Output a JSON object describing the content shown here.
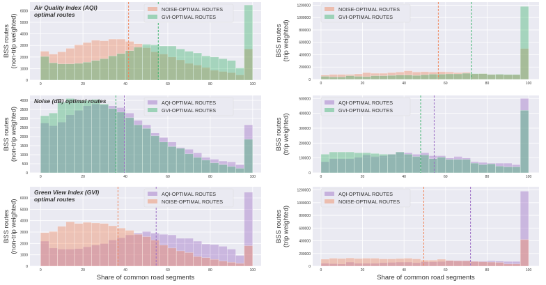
{
  "colors": {
    "noise": "#f0875c",
    "gvi": "#3fb56f",
    "aqi": "#9b6cc4",
    "background": "#eaeaf2"
  },
  "chart_data": [
    {
      "type": "bar",
      "id": "aqi-nontrip",
      "title": "Air Quality Index (AQI)\noptimal routes",
      "ylabel": "BSS routes\n(non-trip weighted)",
      "xlabel": "",
      "bin_edges_step": 4,
      "xlim": [
        -5,
        104
      ],
      "ylim": [
        0,
        6750
      ],
      "xticks": [
        0,
        20,
        40,
        60,
        80,
        100
      ],
      "yticks": [
        0,
        1000,
        2000,
        3000,
        4000,
        5000,
        6000
      ],
      "legend": "top-right",
      "series": [
        {
          "name": "NOISE-OPTIMAL ROUTES",
          "color_key": "noise",
          "mean": 41.5,
          "values": [
            2500,
            2250,
            2450,
            2750,
            3050,
            3250,
            3450,
            3400,
            3550,
            3550,
            3350,
            3150,
            2800,
            2450,
            2250,
            2000,
            1750,
            1450,
            1300,
            1100,
            850,
            750,
            650,
            450,
            2700
          ]
        },
        {
          "name": "GVI-OPTIMAL ROUTES",
          "color_key": "gvi",
          "mean": 55.5,
          "values": [
            2050,
            1500,
            1400,
            1400,
            1450,
            1550,
            1700,
            1850,
            2100,
            2300,
            2550,
            2850,
            3100,
            3050,
            2950,
            2950,
            2700,
            2500,
            2350,
            2100,
            2000,
            1850,
            1700,
            1050,
            6500
          ]
        }
      ]
    },
    {
      "type": "bar",
      "id": "aqi-trip",
      "title": "",
      "ylabel": "BSS routes\n(trip weighted)",
      "xlabel": "",
      "bin_edges_step": 4,
      "xlim": [
        -4,
        105
      ],
      "ylim": [
        0,
        1250000
      ],
      "xticks": [
        0,
        20,
        40,
        60,
        80,
        100
      ],
      "yticks": [
        0,
        200000,
        400000,
        600000,
        800000,
        1000000,
        1200000
      ],
      "legend": "top-left",
      "series": [
        {
          "name": "NOISE-OPTIMAL ROUTES",
          "color_key": "noise",
          "mean": 56.5,
          "values": [
            70000,
            80000,
            80000,
            80000,
            90000,
            110000,
            100000,
            100000,
            110000,
            120000,
            140000,
            120000,
            125000,
            120000,
            125000,
            120000,
            110000,
            115000,
            90000,
            95000,
            80000,
            80000,
            75000,
            75000,
            500000
          ]
        },
        {
          "name": "GVI-OPTIMAL ROUTES",
          "color_key": "gvi",
          "mean": 72.5,
          "values": [
            50000,
            40000,
            40000,
            60000,
            50000,
            45000,
            60000,
            60000,
            65000,
            70000,
            70000,
            65000,
            75000,
            85000,
            85000,
            90000,
            90000,
            100000,
            95000,
            95000,
            80000,
            85000,
            80000,
            80000,
            1180000
          ]
        }
      ]
    },
    {
      "type": "bar",
      "id": "noise-nontrip",
      "title": "Noise (dB) optimal routes",
      "ylabel": "BSS routes\n(non-trip weighted)",
      "xlabel": "",
      "bin_edges_step": 4,
      "xlim": [
        -5,
        104
      ],
      "ylim": [
        0,
        4270
      ],
      "xticks": [
        0,
        20,
        40,
        60,
        80,
        100
      ],
      "yticks": [
        0,
        500,
        1000,
        1500,
        2000,
        2500,
        3000,
        3500,
        4000
      ],
      "legend": "top-right",
      "series": [
        {
          "name": "AQI-OPTIMAL ROUTES",
          "color_key": "aqi",
          "mean": 39.5,
          "values": [
            2750,
            2600,
            2800,
            3200,
            3450,
            3700,
            3800,
            3750,
            3700,
            3600,
            3300,
            2900,
            2650,
            2200,
            1950,
            1700,
            1400,
            1300,
            1100,
            850,
            750,
            650,
            600,
            450,
            2650
          ]
        },
        {
          "name": "GVI-OPTIMAL ROUTES",
          "color_key": "gvi",
          "mean": 35.5,
          "values": [
            3150,
            3300,
            3900,
            4100,
            4000,
            4000,
            4050,
            3800,
            3550,
            3350,
            3050,
            2650,
            2450,
            2050,
            1700,
            1450,
            1350,
            1050,
            850,
            700,
            550,
            450,
            350,
            250,
            1850
          ]
        }
      ]
    },
    {
      "type": "bar",
      "id": "noise-trip",
      "title": "",
      "ylabel": "BSS routes\n(trip weighted)",
      "xlabel": "",
      "bin_edges_step": 4,
      "xlim": [
        -4,
        105
      ],
      "ylim": [
        0,
        520000
      ],
      "xticks": [
        0,
        20,
        40,
        60,
        80,
        100
      ],
      "yticks": [
        0,
        100000,
        200000,
        300000,
        400000,
        500000
      ],
      "legend": "top-left",
      "series": [
        {
          "name": "AQI-OPTIMAL ROUTES",
          "color_key": "aqi",
          "mean": 54.5,
          "values": [
            75000,
            95000,
            95000,
            95000,
            105000,
            120000,
            110000,
            115000,
            125000,
            140000,
            135000,
            125000,
            135000,
            115000,
            115000,
            100000,
            110000,
            100000,
            75000,
            70000,
            65000,
            65000,
            65000,
            55000,
            500000
          ]
        },
        {
          "name": "GVI-OPTIMAL ROUTES",
          "color_key": "gvi",
          "mean": 48,
          "values": [
            125000,
            140000,
            140000,
            140000,
            135000,
            135000,
            130000,
            125000,
            125000,
            140000,
            125000,
            110000,
            120000,
            95000,
            105000,
            90000,
            90000,
            90000,
            65000,
            55000,
            60000,
            45000,
            40000,
            40000,
            420000
          ]
        }
      ]
    },
    {
      "type": "bar",
      "id": "gvi-nontrip",
      "title": "Green View Index (GVI)\noptimal routes",
      "ylabel": "BSS routes\n(non-trip weighted)",
      "xlabel": "Share of common road segments",
      "bin_edges_step": 4,
      "xlim": [
        -5,
        104
      ],
      "ylim": [
        0,
        6980
      ],
      "xticks": [
        0,
        20,
        40,
        60,
        80,
        100
      ],
      "yticks": [
        0,
        1000,
        2000,
        3000,
        4000,
        5000,
        6000
      ],
      "legend": "top-right",
      "series": [
        {
          "name": "AQI-OPTIMAL ROUTES",
          "color_key": "aqi",
          "mean": 54.5,
          "values": [
            2200,
            1600,
            1500,
            1500,
            1550,
            1700,
            1850,
            2000,
            2300,
            2500,
            2750,
            2900,
            3050,
            2900,
            2800,
            2750,
            2450,
            2450,
            2200,
            1950,
            1900,
            1750,
            1500,
            950,
            6500
          ]
        },
        {
          "name": "NOISE-OPTIMAL ROUTES",
          "color_key": "noise",
          "mean": 36.5,
          "values": [
            2950,
            3050,
            3500,
            3900,
            3750,
            3850,
            3800,
            3750,
            3550,
            3350,
            3150,
            2800,
            2600,
            2300,
            1850,
            1600,
            1350,
            1200,
            850,
            750,
            600,
            450,
            350,
            250,
            1800
          ]
        }
      ]
    },
    {
      "type": "bar",
      "id": "gvi-trip",
      "title": "",
      "ylabel": "BSS routes\n(trip weighted)",
      "xlabel": "Share of common road segments",
      "bin_edges_step": 4,
      "xlim": [
        -4,
        105
      ],
      "ylim": [
        0,
        1250000
      ],
      "xticks": [
        0,
        20,
        40,
        60,
        80,
        100
      ],
      "yticks": [
        0,
        200000,
        400000,
        600000,
        800000,
        1000000,
        1200000
      ],
      "legend": "top-left",
      "series": [
        {
          "name": "AQI-OPTIMAL ROUTES",
          "color_key": "aqi",
          "mean": 72,
          "values": [
            45000,
            40000,
            35000,
            65000,
            45000,
            45000,
            45000,
            55000,
            60000,
            65000,
            65000,
            55000,
            70000,
            70000,
            75000,
            90000,
            90000,
            90000,
            80000,
            80000,
            85000,
            80000,
            75000,
            75000,
            1180000
          ]
        },
        {
          "name": "NOISE-OPTIMAL ROUTES",
          "color_key": "noise",
          "mean": 49.5,
          "values": [
            110000,
            125000,
            120000,
            130000,
            120000,
            125000,
            125000,
            115000,
            115000,
            120000,
            125000,
            115000,
            95000,
            95000,
            110000,
            90000,
            85000,
            85000,
            75000,
            70000,
            65000,
            60000,
            35000,
            35000,
            420000
          ]
        }
      ]
    }
  ]
}
